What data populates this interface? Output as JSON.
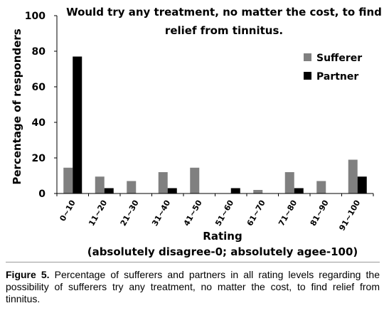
{
  "chart_data": {
    "type": "bar",
    "title_lines": [
      "Would try any treatment, no matter the cost, to find",
      "relief from tinnitus."
    ],
    "xlabel": "Rating",
    "xlabel_note": "(absolutely disagree-0; absolutely agee-100)",
    "ylabel": "Percentage of responders",
    "ylim": [
      0,
      100
    ],
    "yticks": [
      0,
      20,
      40,
      60,
      80,
      100
    ],
    "categories": [
      "0~10",
      "11~20",
      "21~30",
      "31~40",
      "41~50",
      "51~60",
      "61~70",
      "71~80",
      "81~90",
      "91~100"
    ],
    "series": [
      {
        "name": "Sufferer",
        "color": "#808080",
        "values": [
          14.5,
          9.5,
          7,
          12,
          14.5,
          0,
          2,
          12,
          7,
          19
        ]
      },
      {
        "name": "Partner",
        "color": "#000000",
        "values": [
          77,
          3,
          0,
          3,
          0,
          3,
          0,
          3,
          0,
          9.5
        ]
      }
    ],
    "grid": false,
    "legend_position": "top-right"
  },
  "caption": {
    "label": "Figure 5.",
    "text": "Percentage of sufferers and partners in all rating levels regarding the possibility of sufferers try any treatment, no matter the cost, to find relief from tinnitus."
  }
}
